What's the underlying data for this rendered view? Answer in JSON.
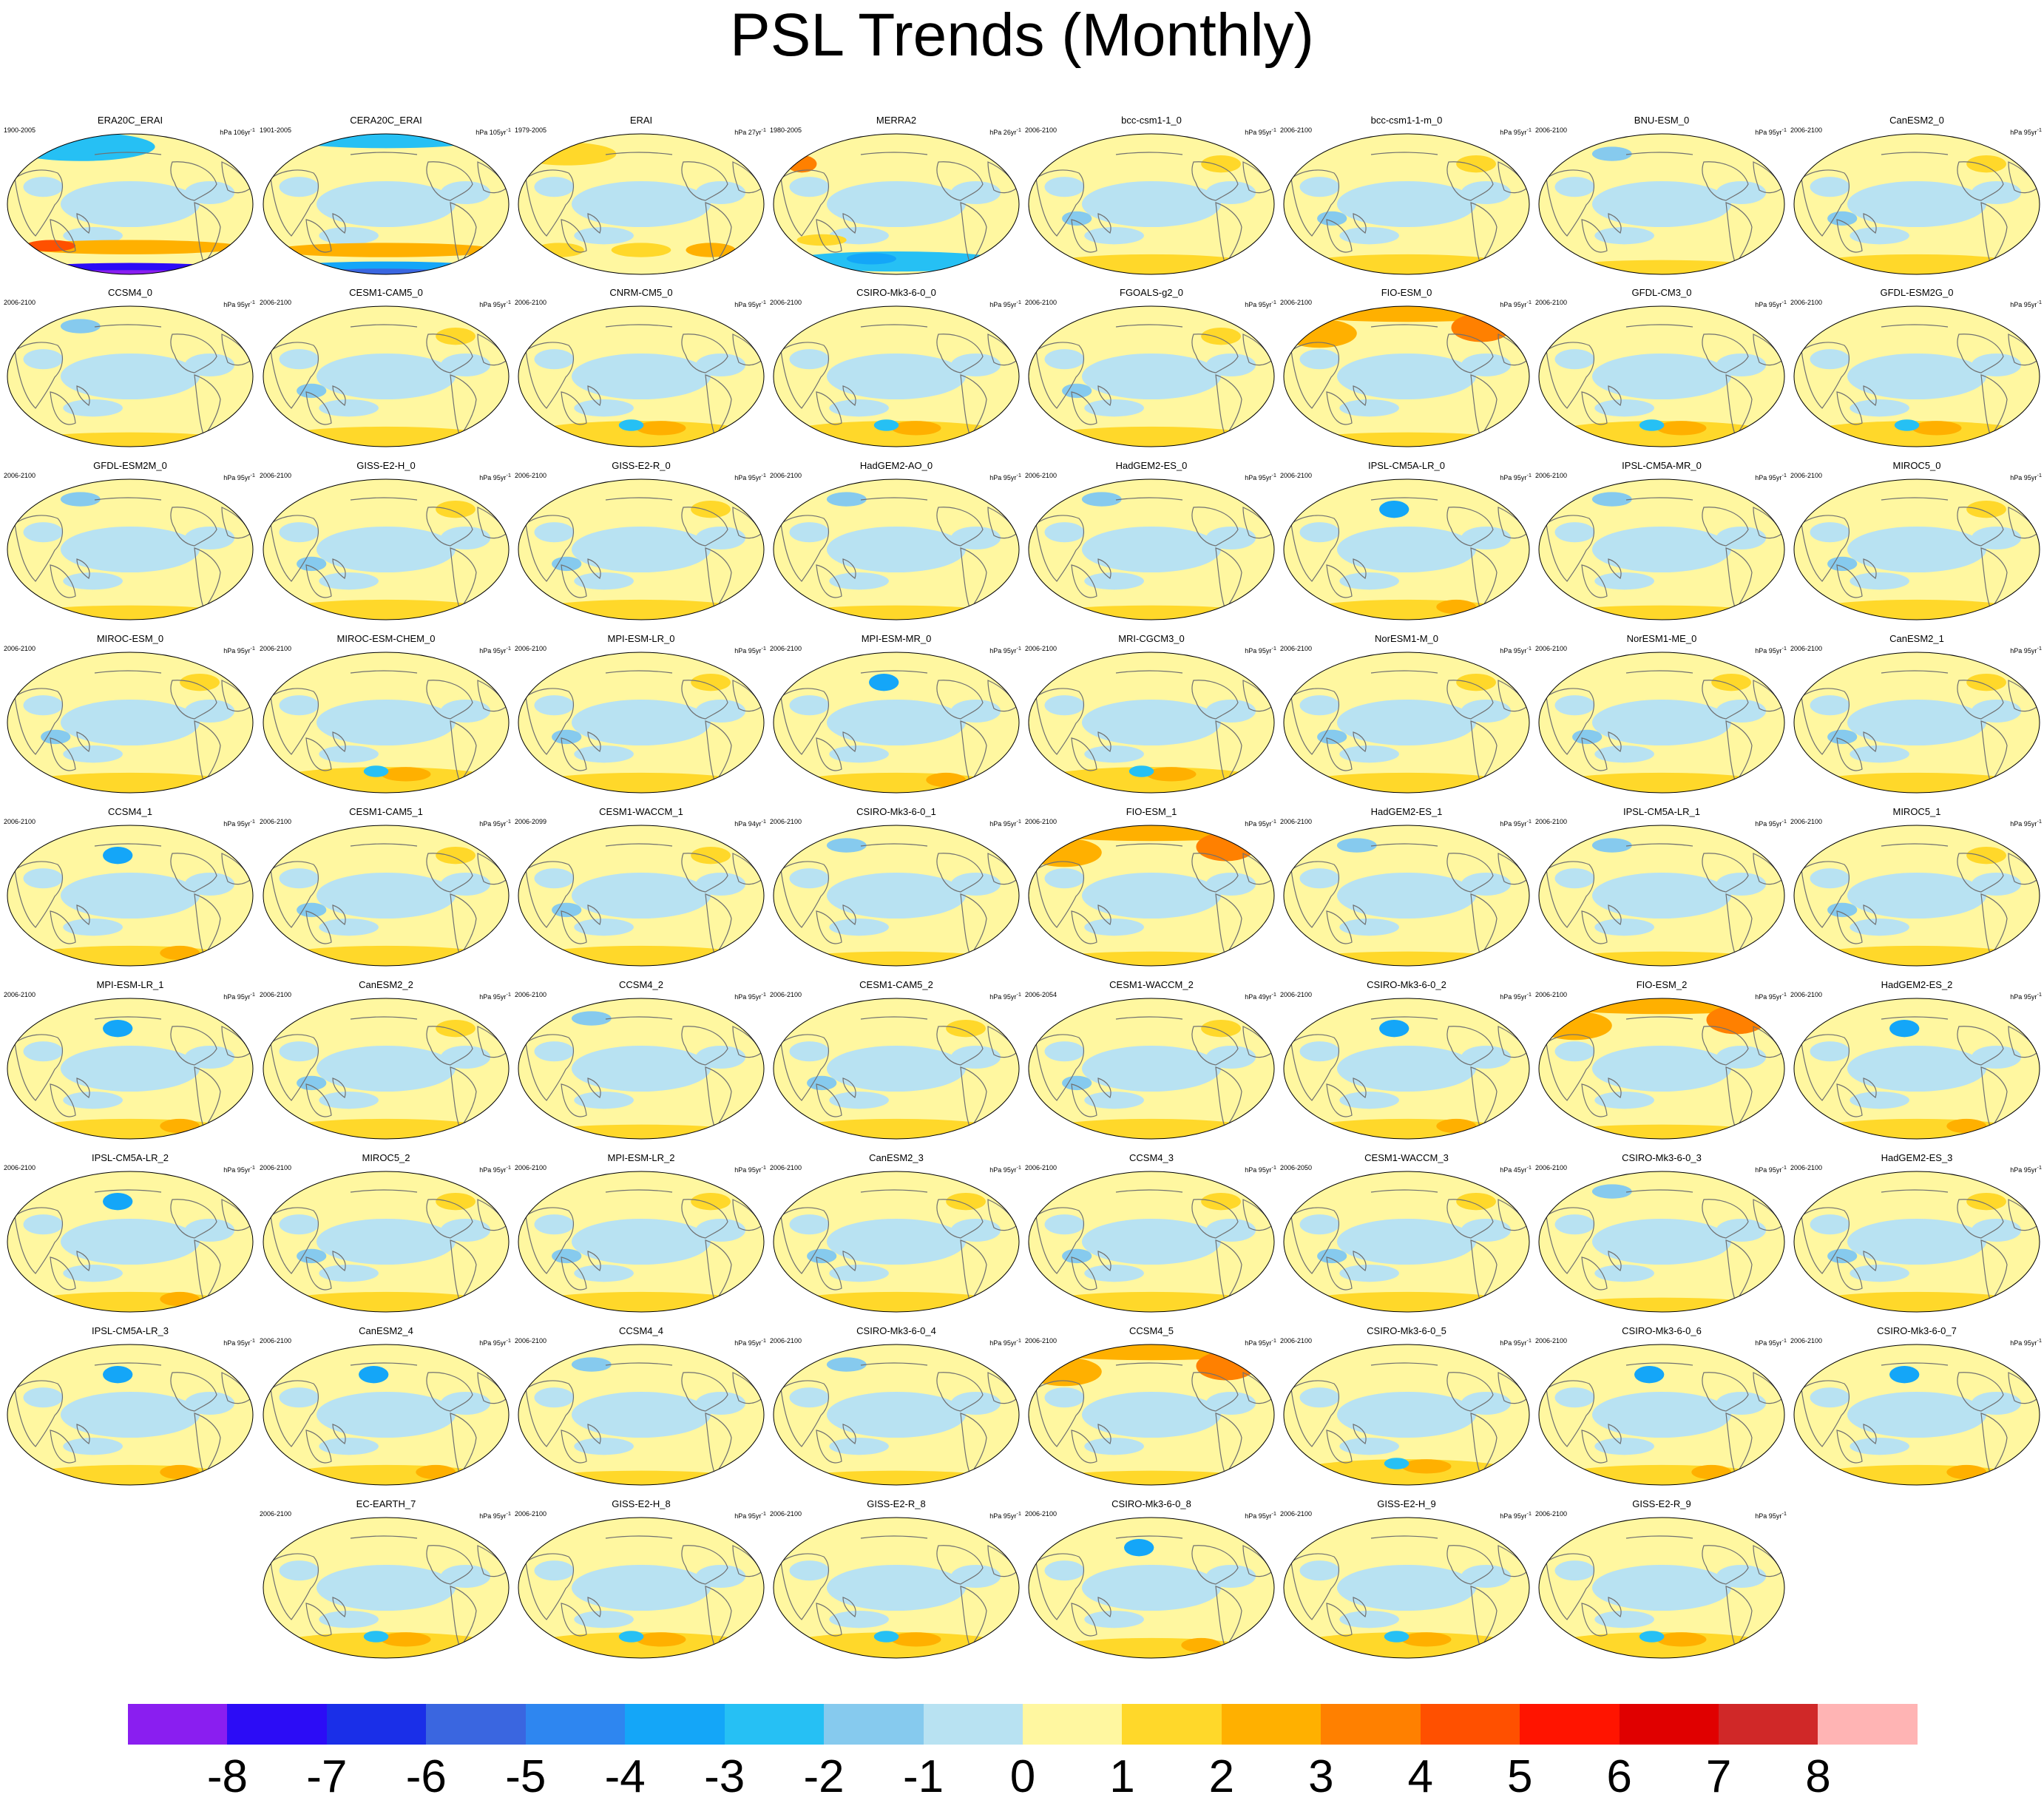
{
  "title": "PSL Trends (Monthly)",
  "map_data": {
    "variable": "PSL",
    "projection": "Robinson, Pacific-centered (global)",
    "panels": [
      {
        "name": "ERA20C_ERAI",
        "period": "1900-2005",
        "units": "hPa 106yr",
        "pattern": "ens"
      },
      {
        "name": "CERA20C_ERAI",
        "period": "1901-2005",
        "units": "hPa 105yr",
        "pattern": "enp"
      },
      {
        "name": "ERAI",
        "period": "1979-2005",
        "units": "hPa 27yr",
        "pattern": "p"
      },
      {
        "name": "MERRA2",
        "period": "1980-2005",
        "units": "hPa 26yr",
        "pattern": "m"
      },
      {
        "name": "bcc-csm1-1_0",
        "period": "2006-2100",
        "units": "hPa 95yr",
        "pattern": "a"
      },
      {
        "name": "bcc-csm1-1-m_0",
        "period": "2006-2100",
        "units": "hPa 95yr",
        "pattern": "a"
      },
      {
        "name": "BNU-ESM_0",
        "period": "2006-2100",
        "units": "hPa 95yr",
        "pattern": "b"
      },
      {
        "name": "CanESM2_0",
        "period": "2006-2100",
        "units": "hPa 95yr",
        "pattern": "a"
      },
      {
        "name": "CCSM4_0",
        "period": "2006-2100",
        "units": "hPa 95yr",
        "pattern": "b"
      },
      {
        "name": "CESM1-CAM5_0",
        "period": "2006-2100",
        "units": "hPa 95yr",
        "pattern": "a"
      },
      {
        "name": "CNRM-CM5_0",
        "period": "2006-2100",
        "units": "hPa 95yr",
        "pattern": "s"
      },
      {
        "name": "CSIRO-Mk3-6-0_0",
        "period": "2006-2100",
        "units": "hPa 95yr",
        "pattern": "s"
      },
      {
        "name": "FGOALS-g2_0",
        "period": "2006-2100",
        "units": "hPa 95yr",
        "pattern": "a"
      },
      {
        "name": "FIO-ESM_0",
        "period": "2006-2100",
        "units": "hPa 95yr",
        "pattern": "f"
      },
      {
        "name": "GFDL-CM3_0",
        "period": "2006-2100",
        "units": "hPa 95yr",
        "pattern": "s"
      },
      {
        "name": "GFDL-ESM2G_0",
        "period": "2006-2100",
        "units": "hPa 95yr",
        "pattern": "s"
      },
      {
        "name": "GFDL-ESM2M_0",
        "period": "2006-2100",
        "units": "hPa 95yr",
        "pattern": "b"
      },
      {
        "name": "GISS-E2-H_0",
        "period": "2006-2100",
        "units": "hPa 95yr",
        "pattern": "a"
      },
      {
        "name": "GISS-E2-R_0",
        "period": "2006-2100",
        "units": "hPa 95yr",
        "pattern": "a"
      },
      {
        "name": "HadGEM2-AO_0",
        "period": "2006-2100",
        "units": "hPa 95yr",
        "pattern": "b"
      },
      {
        "name": "HadGEM2-ES_0",
        "period": "2006-2100",
        "units": "hPa 95yr",
        "pattern": "b"
      },
      {
        "name": "IPSL-CM5A-LR_0",
        "period": "2006-2100",
        "units": "hPa 95yr",
        "pattern": "n"
      },
      {
        "name": "IPSL-CM5A-MR_0",
        "period": "2006-2100",
        "units": "hPa 95yr",
        "pattern": "b"
      },
      {
        "name": "MIROC5_0",
        "period": "2006-2100",
        "units": "hPa 95yr",
        "pattern": "a"
      },
      {
        "name": "MIROC-ESM_0",
        "period": "2006-2100",
        "units": "hPa 95yr",
        "pattern": "a"
      },
      {
        "name": "MIROC-ESM-CHEM_0",
        "period": "2006-2100",
        "units": "hPa 95yr",
        "pattern": "s"
      },
      {
        "name": "MPI-ESM-LR_0",
        "period": "2006-2100",
        "units": "hPa 95yr",
        "pattern": "a"
      },
      {
        "name": "MPI-ESM-MR_0",
        "period": "2006-2100",
        "units": "hPa 95yr",
        "pattern": "n"
      },
      {
        "name": "MRI-CGCM3_0",
        "period": "2006-2100",
        "units": "hPa 95yr",
        "pattern": "s"
      },
      {
        "name": "NorESM1-M_0",
        "period": "2006-2100",
        "units": "hPa 95yr",
        "pattern": "a"
      },
      {
        "name": "NorESM1-ME_0",
        "period": "2006-2100",
        "units": "hPa 95yr",
        "pattern": "a"
      },
      {
        "name": "CanESM2_1",
        "period": "2006-2100",
        "units": "hPa 95yr",
        "pattern": "a"
      },
      {
        "name": "CCSM4_1",
        "period": "2006-2100",
        "units": "hPa 95yr",
        "pattern": "n"
      },
      {
        "name": "CESM1-CAM5_1",
        "period": "2006-2100",
        "units": "hPa 95yr",
        "pattern": "a"
      },
      {
        "name": "CESM1-WACCM_1",
        "period": "2006-2099",
        "units": "hPa 94yr",
        "pattern": "a"
      },
      {
        "name": "CSIRO-Mk3-6-0_1",
        "period": "2006-2100",
        "units": "hPa 95yr",
        "pattern": "b"
      },
      {
        "name": "FIO-ESM_1",
        "period": "2006-2100",
        "units": "hPa 95yr",
        "pattern": "f"
      },
      {
        "name": "HadGEM2-ES_1",
        "period": "2006-2100",
        "units": "hPa 95yr",
        "pattern": "b"
      },
      {
        "name": "IPSL-CM5A-LR_1",
        "period": "2006-2100",
        "units": "hPa 95yr",
        "pattern": "b"
      },
      {
        "name": "MIROC5_1",
        "period": "2006-2100",
        "units": "hPa 95yr",
        "pattern": "a"
      },
      {
        "name": "MPI-ESM-LR_1",
        "period": "2006-2100",
        "units": "hPa 95yr",
        "pattern": "n"
      },
      {
        "name": "CanESM2_2",
        "period": "2006-2100",
        "units": "hPa 95yr",
        "pattern": "a"
      },
      {
        "name": "CCSM4_2",
        "period": "2006-2100",
        "units": "hPa 95yr",
        "pattern": "b"
      },
      {
        "name": "CESM1-CAM5_2",
        "period": "2006-2100",
        "units": "hPa 95yr",
        "pattern": "a"
      },
      {
        "name": "CESM1-WACCM_2",
        "period": "2006-2054",
        "units": "hPa 49yr",
        "pattern": "a"
      },
      {
        "name": "CSIRO-Mk3-6-0_2",
        "period": "2006-2100",
        "units": "hPa 95yr",
        "pattern": "n"
      },
      {
        "name": "FIO-ESM_2",
        "period": "2006-2100",
        "units": "hPa 95yr",
        "pattern": "f"
      },
      {
        "name": "HadGEM2-ES_2",
        "period": "2006-2100",
        "units": "hPa 95yr",
        "pattern": "n"
      },
      {
        "name": "IPSL-CM5A-LR_2",
        "period": "2006-2100",
        "units": "hPa 95yr",
        "pattern": "n"
      },
      {
        "name": "MIROC5_2",
        "period": "2006-2100",
        "units": "hPa 95yr",
        "pattern": "a"
      },
      {
        "name": "MPI-ESM-LR_2",
        "period": "2006-2100",
        "units": "hPa 95yr",
        "pattern": "a"
      },
      {
        "name": "CanESM2_3",
        "period": "2006-2100",
        "units": "hPa 95yr",
        "pattern": "a"
      },
      {
        "name": "CCSM4_3",
        "period": "2006-2100",
        "units": "hPa 95yr",
        "pattern": "a"
      },
      {
        "name": "CESM1-WACCM_3",
        "period": "2006-2050",
        "units": "hPa 45yr",
        "pattern": "a"
      },
      {
        "name": "CSIRO-Mk3-6-0_3",
        "period": "2006-2100",
        "units": "hPa 95yr",
        "pattern": "b"
      },
      {
        "name": "HadGEM2-ES_3",
        "period": "2006-2100",
        "units": "hPa 95yr",
        "pattern": "a"
      },
      {
        "name": "IPSL-CM5A-LR_3",
        "period": "",
        "units": "hPa 95yr",
        "pattern": "n"
      },
      {
        "name": "CanESM2_4",
        "period": "2006-2100",
        "units": "hPa 95yr",
        "pattern": "n"
      },
      {
        "name": "CCSM4_4",
        "period": "2006-2100",
        "units": "hPa 95yr",
        "pattern": "b"
      },
      {
        "name": "CSIRO-Mk3-6-0_4",
        "period": "2006-2100",
        "units": "hPa 95yr",
        "pattern": "b"
      },
      {
        "name": "CCSM4_5",
        "period": "2006-2100",
        "units": "hPa 95yr",
        "pattern": "f"
      },
      {
        "name": "CSIRO-Mk3-6-0_5",
        "period": "2006-2100",
        "units": "hPa 95yr",
        "pattern": "s"
      },
      {
        "name": "CSIRO-Mk3-6-0_6",
        "period": "2006-2100",
        "units": "hPa 95yr",
        "pattern": "n"
      },
      {
        "name": "CSIRO-Mk3-6-0_7",
        "period": "2006-2100",
        "units": "hPa 95yr",
        "pattern": "n"
      },
      {
        "name": "EC-EARTH_7",
        "period": "2006-2100",
        "units": "hPa 95yr",
        "pattern": "s"
      },
      {
        "name": "GISS-E2-H_8",
        "period": "2006-2100",
        "units": "hPa 95yr",
        "pattern": "s"
      },
      {
        "name": "GISS-E2-R_8",
        "period": "2006-2100",
        "units": "hPa 95yr",
        "pattern": "s"
      },
      {
        "name": "CSIRO-Mk3-6-0_8",
        "period": "2006-2100",
        "units": "hPa 95yr",
        "pattern": "n"
      },
      {
        "name": "GISS-E2-H_9",
        "period": "2006-2100",
        "units": "hPa 95yr",
        "pattern": "s"
      },
      {
        "name": "GISS-E2-R_9",
        "period": "2006-2100",
        "units": "hPa 95yr",
        "pattern": "s"
      }
    ]
  },
  "colorbar": {
    "labels": [
      "-8",
      "-7",
      "-6",
      "-5",
      "-4",
      "-3",
      "-2",
      "-1",
      "0",
      "1",
      "2",
      "3",
      "4",
      "5",
      "6",
      "7",
      "8"
    ],
    "colors": [
      "#8a1ef0",
      "#2c0cf6",
      "#1a2fe8",
      "#3a66e0",
      "#2e86f0",
      "#14a6f8",
      "#26c0f4",
      "#86caee",
      "#b8e2f2",
      "#fff7a0",
      "#ffd82a",
      "#ffb000",
      "#ff8000",
      "#ff5000",
      "#ff1400",
      "#e00000",
      "#d02828",
      "#ffb4b4"
    ]
  },
  "icons": {
    "map_panel": "globe-map-icon"
  },
  "colors": {
    "ocean": "#b8e2f2",
    "land": "#fff7a0",
    "coastline": "#707070"
  }
}
